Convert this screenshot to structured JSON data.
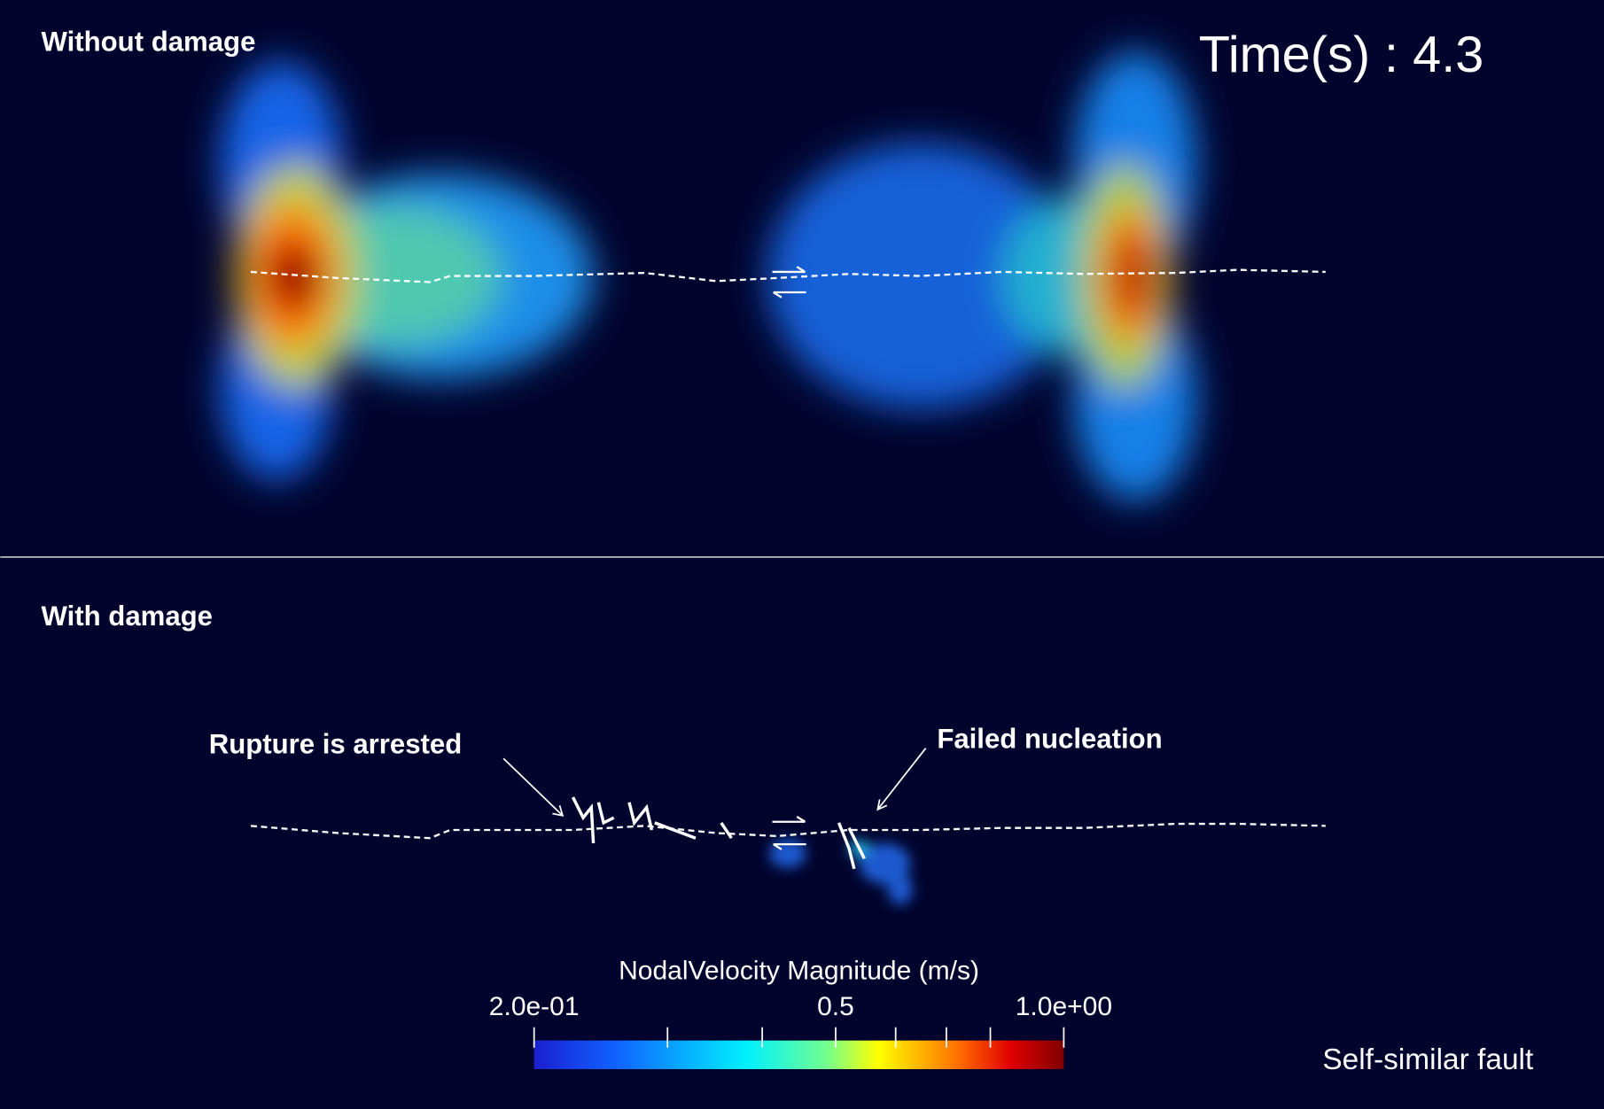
{
  "panels": [
    {
      "label": "Without damage"
    },
    {
      "label": "With damage",
      "annotations": [
        "Rupture is arrested",
        "Failed nucleation"
      ]
    }
  ],
  "time_label": "Time(s) : 4.3",
  "footer": "Self-similar fault",
  "colorbar": {
    "title": "NodalVelocity Magnitude (m/s)",
    "range": [
      0.2,
      1.0
    ],
    "log": true,
    "ticks": [
      {
        "value": 0.2,
        "label": "2.0e-01"
      },
      {
        "value": 0.5,
        "label": "0.5"
      },
      {
        "value": 1.0,
        "label": "1.0e+00"
      }
    ],
    "minor_ticks": [
      0.3,
      0.4,
      0.6,
      0.7,
      0.8
    ]
  }
}
